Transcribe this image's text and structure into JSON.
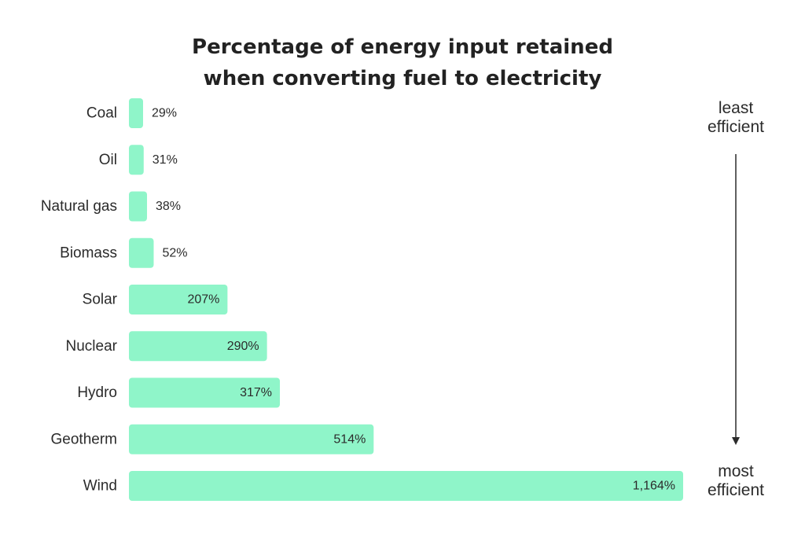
{
  "chart_data": {
    "type": "bar",
    "orientation": "horizontal",
    "title_line1": "Percentage of energy input retained",
    "title_line2": "when converting fuel to electricity",
    "categories": [
      "Coal",
      "Oil",
      "Natural gas",
      "Biomass",
      "Solar",
      "Nuclear",
      "Hydro",
      "Geotherm",
      "Wind"
    ],
    "values": [
      29,
      31,
      38,
      52,
      207,
      290,
      317,
      514,
      1164
    ],
    "value_labels": [
      "29%",
      "31%",
      "38%",
      "52%",
      "207%",
      "290%",
      "317%",
      "514%",
      "1,164%"
    ],
    "xlim": [
      0,
      1164
    ],
    "grid": false,
    "legend": "none",
    "annotation_top": [
      "least",
      "efficient"
    ],
    "annotation_bottom": [
      "most",
      "efficient"
    ],
    "colors": {
      "bar": "#8ff5c9",
      "text": "#2b2b2b",
      "arrow": "#2b2b2b"
    }
  }
}
